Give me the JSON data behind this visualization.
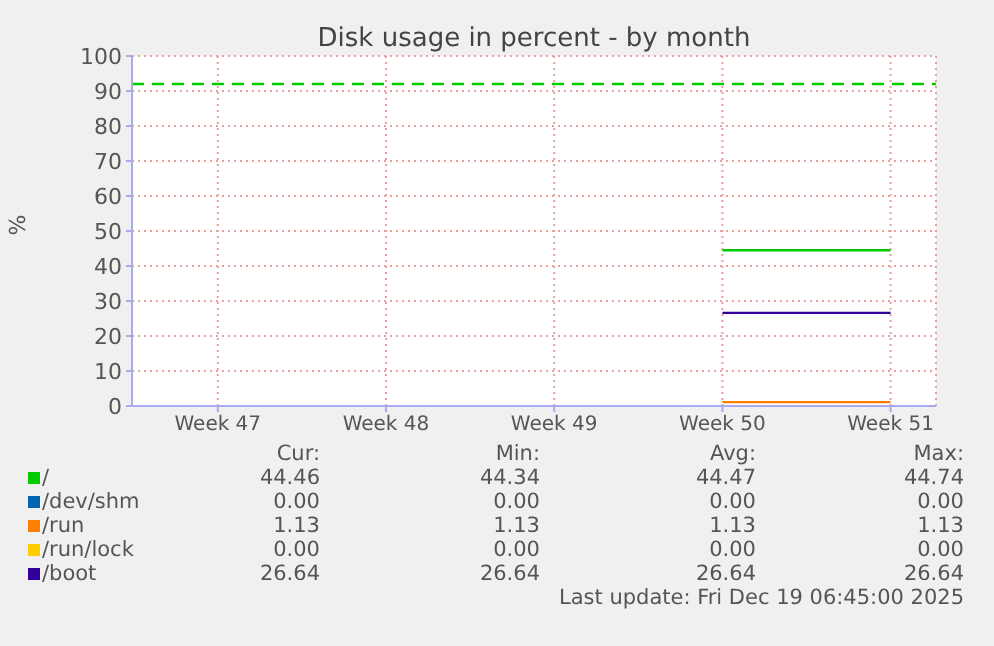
{
  "chart_data": {
    "type": "line",
    "title": "Disk usage in percent - by month",
    "ylabel": "%",
    "categories": [
      "Week 47",
      "Week 48",
      "Week 49",
      "Week 50",
      "Week 51"
    ],
    "series": [
      {
        "name": "/",
        "color": "#00cc00",
        "values": [
          null,
          null,
          null,
          44.5,
          44.5
        ]
      },
      {
        "name": "/dev/shm",
        "color": "#0066b3",
        "values": [
          null,
          null,
          null,
          null,
          null
        ]
      },
      {
        "name": "/run",
        "color": "#ff8000",
        "values": [
          null,
          null,
          null,
          1.1,
          1.1
        ]
      },
      {
        "name": "/run/lock",
        "color": "#ffcc00",
        "values": [
          null,
          null,
          null,
          null,
          null
        ]
      },
      {
        "name": "/boot",
        "color": "#330099",
        "values": [
          null,
          null,
          null,
          26.6,
          26.6
        ]
      }
    ],
    "ylim": [
      0,
      100
    ],
    "yticks": [
      0,
      10,
      20,
      30,
      40,
      50,
      60,
      70,
      80,
      90,
      100
    ],
    "ref_lines": [
      {
        "axis": "y",
        "value": 92,
        "color": "#00cc00",
        "line_style": "dashed"
      }
    ],
    "grid": true,
    "legend": "bottom",
    "marker": "none",
    "line_style": "solid",
    "annotations": [
      "Cur:",
      "Min:",
      "Avg:",
      "Max:",
      "44.46",
      "44.34",
      "44.47",
      "44.74",
      "0.00",
      "0.00",
      "0.00",
      "0.00",
      "1.13",
      "1.13",
      "1.13",
      "1.13",
      "0.00",
      "0.00",
      "0.00",
      "0.00",
      "26.64",
      "26.64",
      "26.64",
      "26.64",
      "Last update: Fri Dec 19 06:45:00 2025"
    ]
  }
}
